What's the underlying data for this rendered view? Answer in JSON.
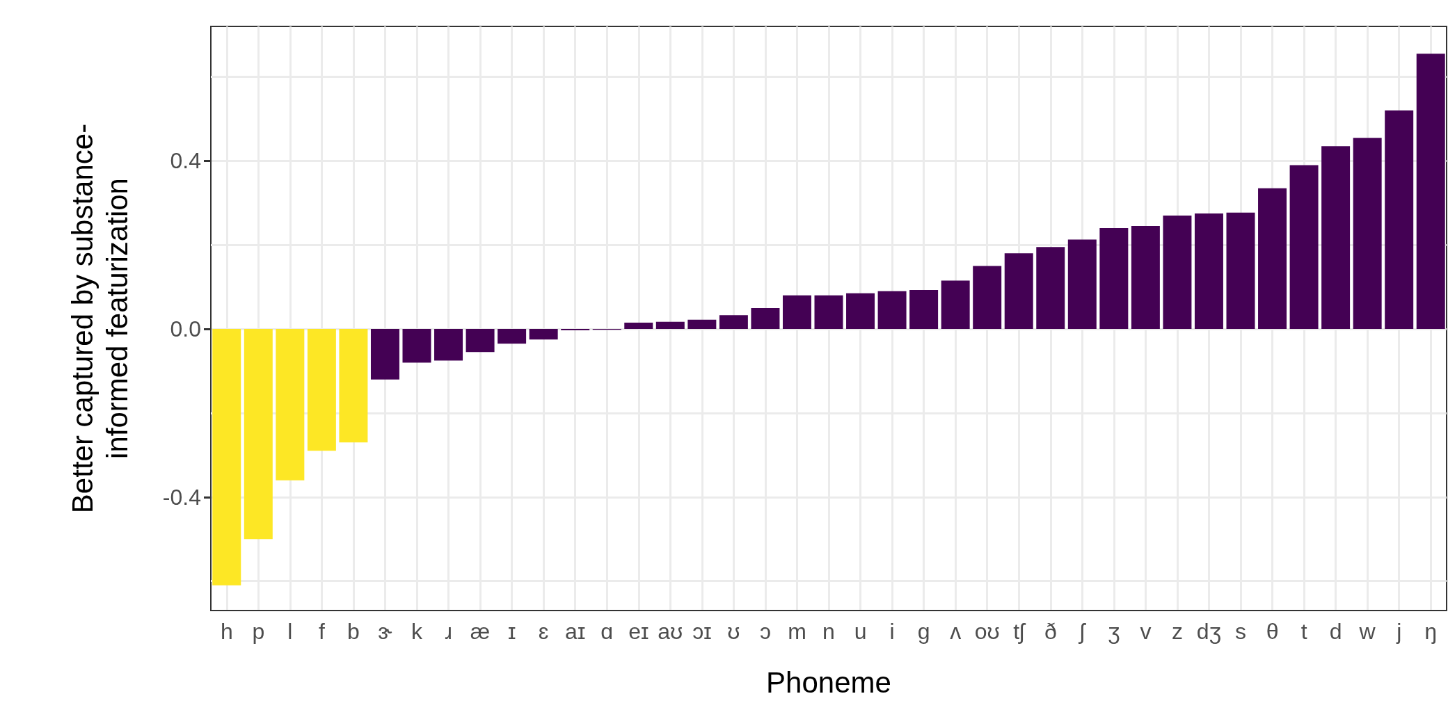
{
  "chart_data": {
    "type": "bar",
    "xlabel": "Phoneme",
    "ylabel": "Better captured by substance-informed featurization",
    "categories": [
      "h",
      "p",
      "l",
      "f",
      "b",
      "ɝ",
      "k",
      "ɹ",
      "æ",
      "ɪ",
      "ɛ",
      "aɪ",
      "ɑ",
      "eɪ",
      "aʊ",
      "ɔɪ",
      "ʊ",
      "ɔ",
      "m",
      "n",
      "u",
      "i",
      "g",
      "ʌ",
      "oʊ",
      "tʃ",
      "ð",
      "ʃ",
      "ʒ",
      "v",
      "z",
      "dʒ",
      "s",
      "θ",
      "t",
      "d",
      "w",
      "j",
      "ŋ"
    ],
    "values": [
      -0.61,
      -0.5,
      -0.36,
      -0.29,
      -0.27,
      -0.12,
      -0.08,
      -0.075,
      -0.055,
      -0.035,
      -0.025,
      -0.003,
      -0.002,
      0.015,
      0.017,
      0.022,
      0.033,
      0.05,
      0.08,
      0.08,
      0.085,
      0.09,
      0.093,
      0.115,
      0.15,
      0.18,
      0.195,
      0.213,
      0.24,
      0.245,
      0.27,
      0.275,
      0.277,
      0.335,
      0.39,
      0.435,
      0.455,
      0.52,
      0.655
    ],
    "colors": [
      "#fde725",
      "#fde725",
      "#fde725",
      "#fde725",
      "#fde725",
      "#440154",
      "#440154",
      "#440154",
      "#440154",
      "#440154",
      "#440154",
      "#440154",
      "#440154",
      "#440154",
      "#440154",
      "#440154",
      "#440154",
      "#440154",
      "#440154",
      "#440154",
      "#440154",
      "#440154",
      "#440154",
      "#440154",
      "#440154",
      "#440154",
      "#440154",
      "#440154",
      "#440154",
      "#440154",
      "#440154",
      "#440154",
      "#440154",
      "#440154",
      "#440154",
      "#440154",
      "#440154",
      "#440154",
      "#440154"
    ],
    "ylim": [
      -0.67,
      0.72
    ],
    "yticks": [
      {
        "value": -0.6,
        "label": null
      },
      {
        "value": -0.4,
        "label": "-0.4"
      },
      {
        "value": -0.2,
        "label": null
      },
      {
        "value": 0,
        "label": "0.0"
      },
      {
        "value": 0.2,
        "label": null
      },
      {
        "value": 0.4,
        "label": "0.4"
      },
      {
        "value": 0.6,
        "label": null
      }
    ],
    "grid": true
  }
}
